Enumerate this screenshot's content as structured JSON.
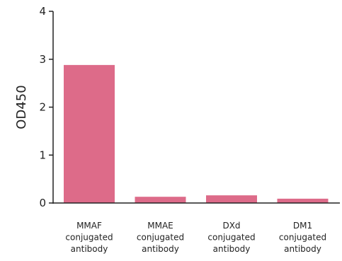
{
  "chart_data": {
    "type": "bar",
    "categories": [
      [
        "MMAF",
        "conjugated",
        "antibody"
      ],
      [
        "MMAE",
        "conjugated",
        "antibody"
      ],
      [
        "DXd",
        "conjugated",
        "antibody"
      ],
      [
        "DM1",
        "conjugated",
        "antibody"
      ]
    ],
    "values": [
      2.88,
      0.13,
      0.16,
      0.09
    ],
    "title": "",
    "xlabel": "",
    "ylabel": "OD450",
    "ylim": [
      0,
      4
    ],
    "yticks": [
      "0",
      "1",
      "2",
      "3",
      "4"
    ],
    "grid": false,
    "legend": "none",
    "bar_color": "#DD6B89",
    "axis_color": "#222222"
  }
}
